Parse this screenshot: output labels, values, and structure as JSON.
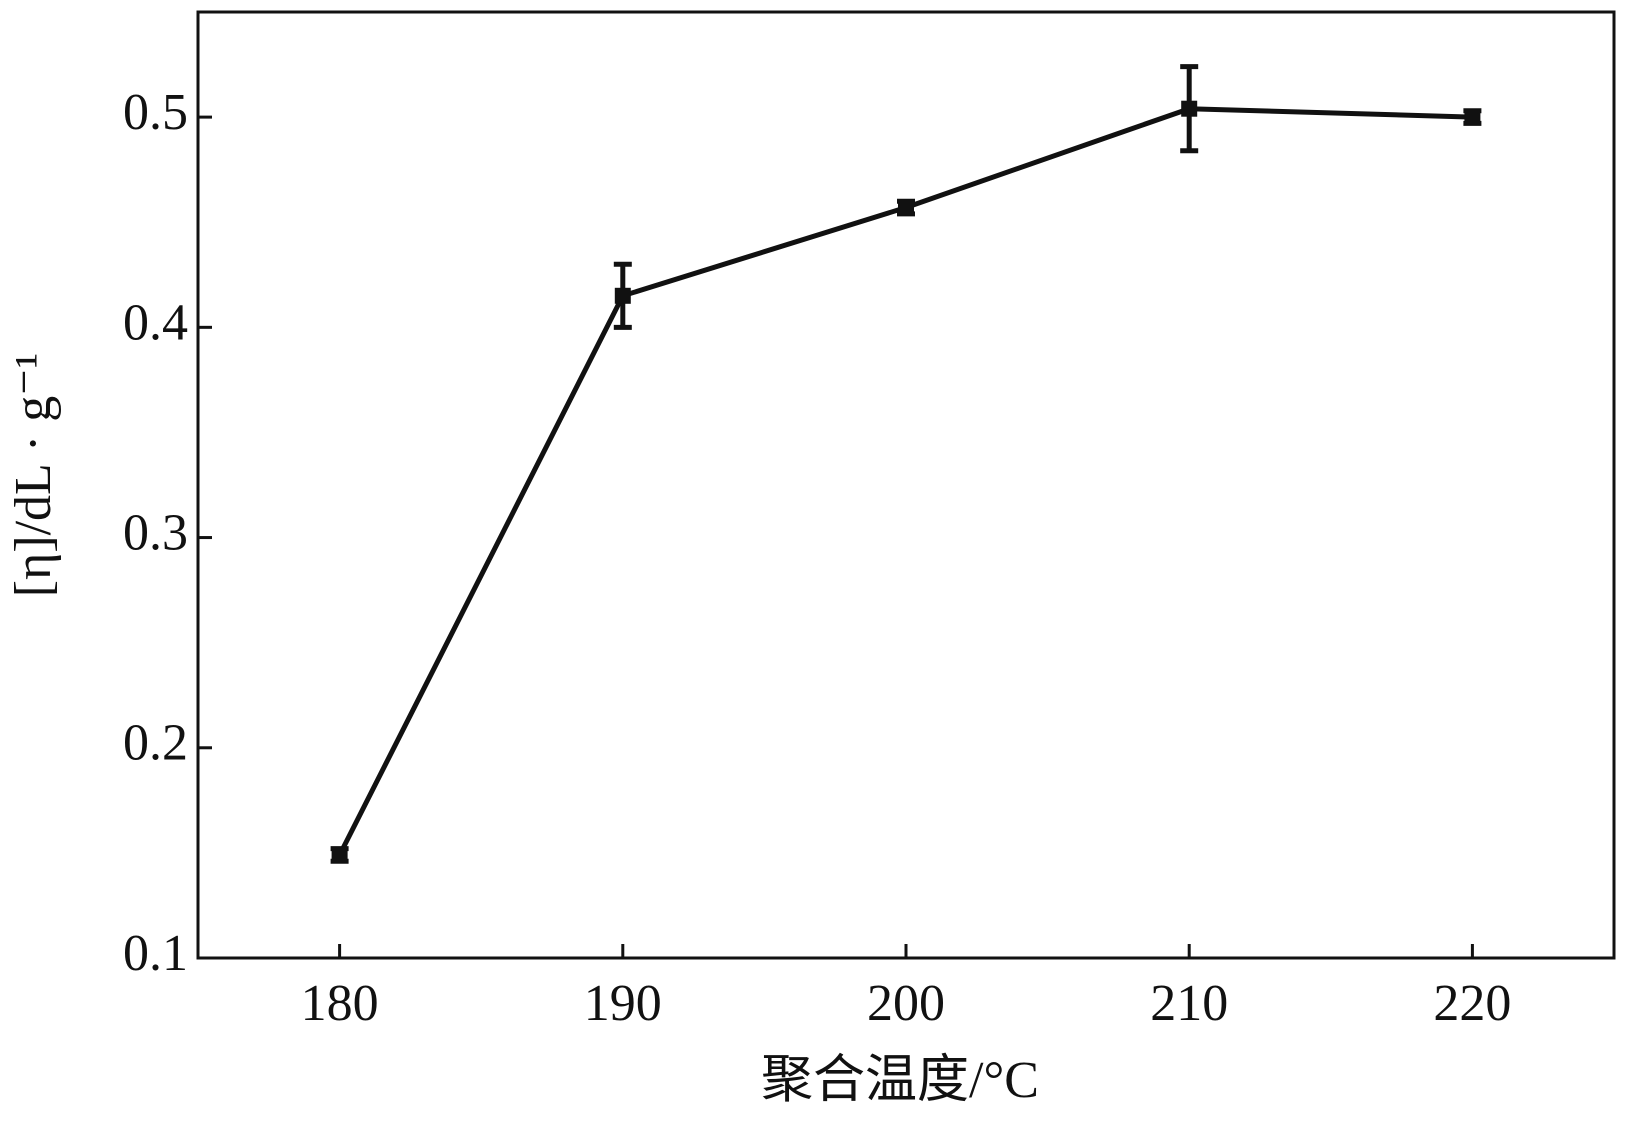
{
  "chart_data": {
    "type": "line",
    "x_label": "聚合温度/°C",
    "y_label": "[η]/dL · g⁻¹",
    "x": [
      180,
      190,
      200,
      210,
      220
    ],
    "series": [
      {
        "color": "#111111",
        "values": [
          0.149,
          0.415,
          0.457,
          0.504,
          0.5
        ],
        "errors": [
          0.003,
          0.015,
          0.003,
          0.02,
          0.003
        ]
      }
    ],
    "xlim": [
      175,
      225
    ],
    "xticks": [
      180,
      190,
      200,
      210,
      220
    ],
    "ylim": [
      0.1,
      0.55
    ],
    "yticks": [
      0.1,
      0.2,
      0.3,
      0.4,
      0.5
    ],
    "grid": false
  }
}
